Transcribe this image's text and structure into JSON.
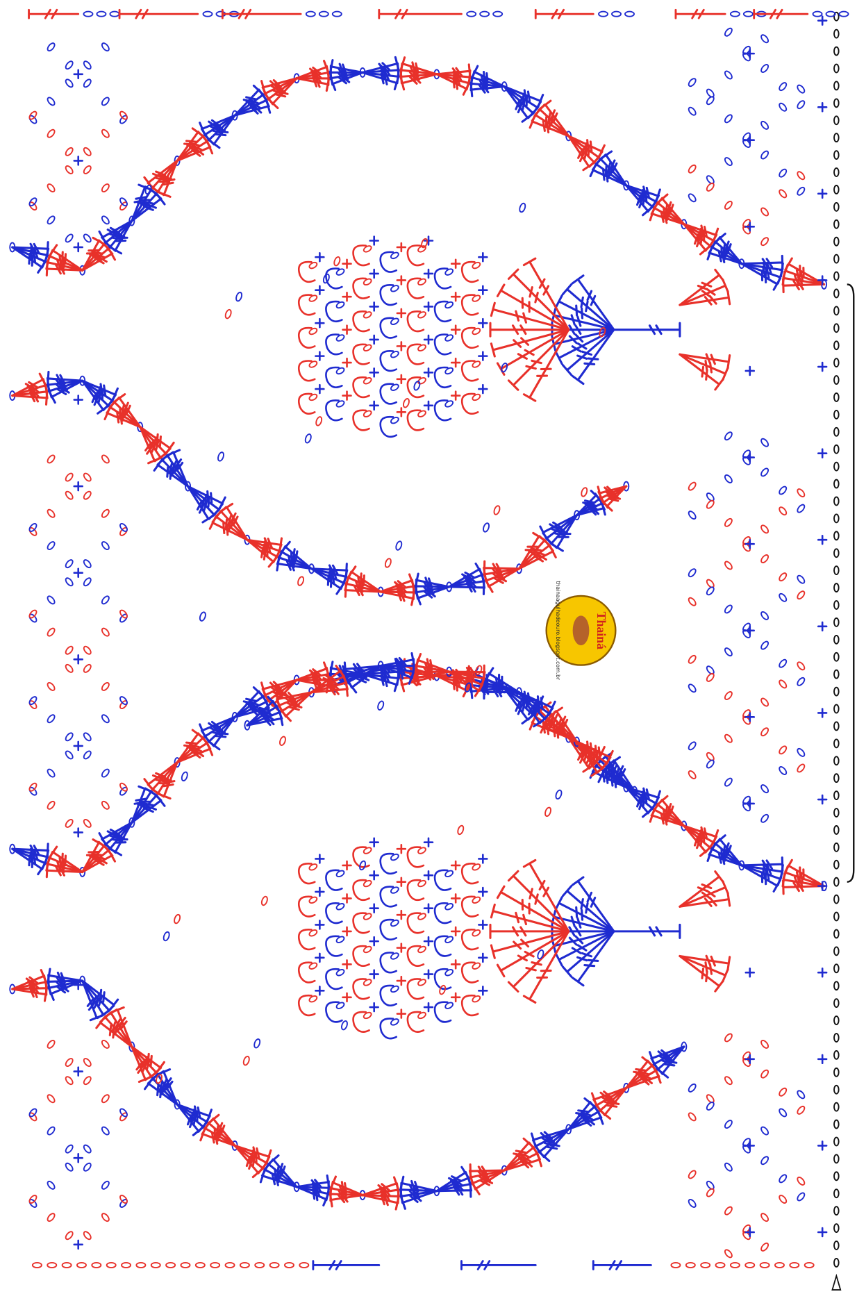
{
  "watermark": {
    "name": "Thainá",
    "url": "thainaagulhadeouro.blogspot.com.br"
  }
}
